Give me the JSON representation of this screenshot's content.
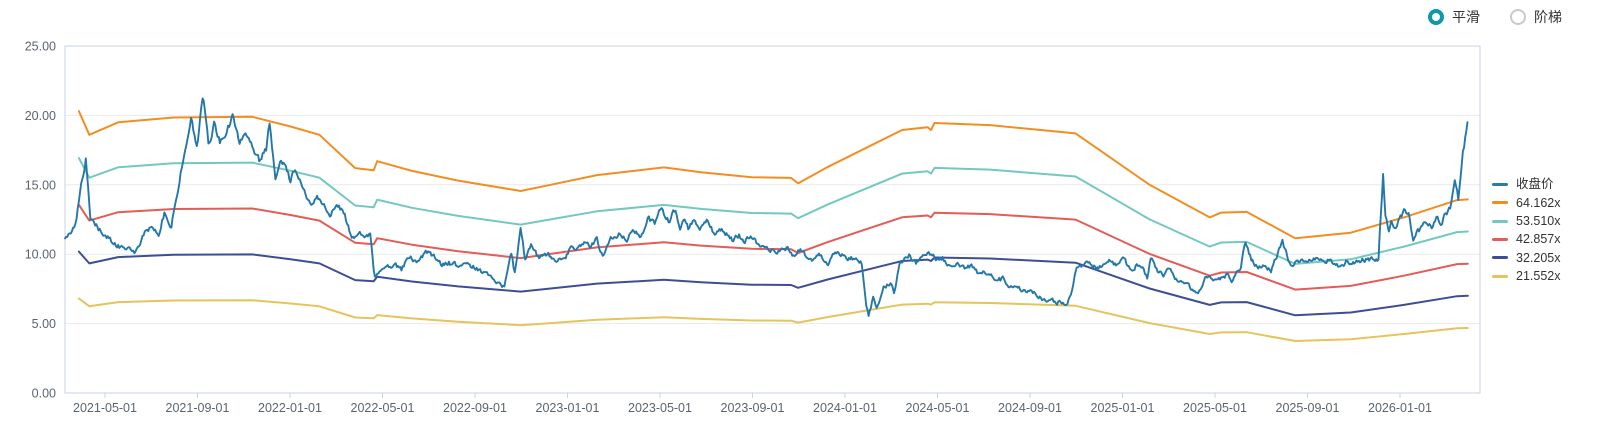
{
  "controls": {
    "options": [
      {
        "label": "平滑",
        "selected": true
      },
      {
        "label": "阶梯",
        "selected": false
      }
    ],
    "accent_color": "#0d9aa8"
  },
  "legend": {
    "items": [
      {
        "label": "收盘价",
        "color": "#2b7ba3"
      },
      {
        "label": "64.162x",
        "color": "#f28e21"
      },
      {
        "label": "53.510x",
        "color": "#73c8c0"
      },
      {
        "label": "42.857x",
        "color": "#e45c57"
      },
      {
        "label": "32.205x",
        "color": "#3d4e95"
      },
      {
        "label": "21.552x",
        "color": "#e5c45c"
      }
    ]
  },
  "chart_data": {
    "type": "line",
    "title": "",
    "xlabel": "",
    "ylabel": "",
    "ylim": [
      0,
      25
    ],
    "y_tick_labels": [
      "0.00",
      "5.00",
      "10.00",
      "15.00",
      "20.00",
      "25.00"
    ],
    "y_tick_values": [
      0,
      5,
      10,
      15,
      20,
      25
    ],
    "x_tick_labels": [
      "2021-05-01",
      "2021-09-01",
      "2022-01-01",
      "2022-05-01",
      "2022-09-01",
      "2023-01-01",
      "2023-05-01",
      "2023-09-01",
      "2024-01-01",
      "2024-05-01",
      "2024-09-01",
      "2025-01-01",
      "2025-05-01",
      "2025-09-01",
      "2026-01-01"
    ],
    "x_first_tick_t": 1.73,
    "x_tick_step_t": 4,
    "t_range": [
      0,
      60.66
    ],
    "grid": true,
    "legend_position": "right",
    "mode": "smooth",
    "price_series": {
      "name": "收盘价",
      "color": "#2478a9",
      "anchors": [
        [
          0,
          11.0
        ],
        [
          0.45,
          12.1
        ],
        [
          0.9,
          17.0
        ],
        [
          1.1,
          12.6
        ],
        [
          1.45,
          11.9
        ],
        [
          1.8,
          11.3
        ],
        [
          2.15,
          10.7
        ],
        [
          2.6,
          10.4
        ],
        [
          3.0,
          10.25
        ],
        [
          3.45,
          11.5
        ],
        [
          3.8,
          12.1
        ],
        [
          4.05,
          11.6
        ],
        [
          4.3,
          12.95
        ],
        [
          4.6,
          12.0
        ],
        [
          4.85,
          14.3
        ],
        [
          5.05,
          16.4
        ],
        [
          5.2,
          17.6
        ],
        [
          5.45,
          19.7
        ],
        [
          5.7,
          17.6
        ],
        [
          5.97,
          21.5
        ],
        [
          6.2,
          18.0
        ],
        [
          6.45,
          19.3
        ],
        [
          6.7,
          18.0
        ],
        [
          7.0,
          19.0
        ],
        [
          7.26,
          20.0
        ],
        [
          7.55,
          17.9
        ],
        [
          7.8,
          18.8
        ],
        [
          8.4,
          16.7
        ],
        [
          8.7,
          17.6
        ],
        [
          8.85,
          19.4
        ],
        [
          9.1,
          15.5
        ],
        [
          9.35,
          16.8
        ],
        [
          9.6,
          15.9
        ],
        [
          9.75,
          15.3
        ],
        [
          9.95,
          16.3
        ],
        [
          10.3,
          14.7
        ],
        [
          10.6,
          13.6
        ],
        [
          10.9,
          14.2
        ],
        [
          11.5,
          12.9
        ],
        [
          11.85,
          13.5
        ],
        [
          12.1,
          12.9
        ],
        [
          12.4,
          11.0
        ],
        [
          12.7,
          11.6
        ],
        [
          12.95,
          11.2
        ],
        [
          13.2,
          11.4
        ],
        [
          13.37,
          8.4
        ],
        [
          13.55,
          8.6
        ],
        [
          13.8,
          8.98
        ],
        [
          14.3,
          9.2
        ],
        [
          14.55,
          8.86
        ],
        [
          14.9,
          9.82
        ],
        [
          15.2,
          9.58
        ],
        [
          15.75,
          10.3
        ],
        [
          16.25,
          9.22
        ],
        [
          16.6,
          9.4
        ],
        [
          17.0,
          9.1
        ],
        [
          17.4,
          9.3
        ],
        [
          18.1,
          8.63
        ],
        [
          18.6,
          8.14
        ],
        [
          19.0,
          7.6
        ],
        [
          19.3,
          9.94
        ],
        [
          19.45,
          8.6
        ],
        [
          19.7,
          11.74
        ],
        [
          19.9,
          9.5
        ],
        [
          20.15,
          10.66
        ],
        [
          20.5,
          9.7
        ],
        [
          20.9,
          9.9
        ],
        [
          21.3,
          9.6
        ],
        [
          21.6,
          9.7
        ],
        [
          21.9,
          10.54
        ],
        [
          22.15,
          10.3
        ],
        [
          22.4,
          10.9
        ],
        [
          22.7,
          10.54
        ],
        [
          23.0,
          11.02
        ],
        [
          23.25,
          9.9
        ],
        [
          23.7,
          11.26
        ],
        [
          24.0,
          11.5
        ],
        [
          24.3,
          11.0
        ],
        [
          24.6,
          11.74
        ],
        [
          24.9,
          11.26
        ],
        [
          25.2,
          12.58
        ],
        [
          25.5,
          12.2
        ],
        [
          25.8,
          13.3
        ],
        [
          26.1,
          12.4
        ],
        [
          26.4,
          13.2
        ],
        [
          26.6,
          12.1
        ],
        [
          26.75,
          12.5
        ],
        [
          26.95,
          11.9
        ],
        [
          27.2,
          12.4
        ],
        [
          27.5,
          12.0
        ],
        [
          27.75,
          12.5
        ],
        [
          28.05,
          11.5
        ],
        [
          28.35,
          11.7
        ],
        [
          28.6,
          11.5
        ],
        [
          28.9,
          11.0
        ],
        [
          29.15,
          11.4
        ],
        [
          29.4,
          11.0
        ],
        [
          29.6,
          11.2
        ],
        [
          30.07,
          10.66
        ],
        [
          30.6,
          10.4
        ],
        [
          31.0,
          10.2
        ],
        [
          31.2,
          10.4
        ],
        [
          31.5,
          9.94
        ],
        [
          31.8,
          10.3
        ],
        [
          32.3,
          9.58
        ],
        [
          32.6,
          9.9
        ],
        [
          33.0,
          9.34
        ],
        [
          33.4,
          10.2
        ],
        [
          33.8,
          9.6
        ],
        [
          34.2,
          9.7
        ],
        [
          34.45,
          9.4
        ],
        [
          34.65,
          6.2
        ],
        [
          34.76,
          5.5
        ],
        [
          34.95,
          6.94
        ],
        [
          35.1,
          6.1
        ],
        [
          35.4,
          7.78
        ],
        [
          35.7,
          7.9
        ],
        [
          35.85,
          7.3
        ],
        [
          36.1,
          9.34
        ],
        [
          36.3,
          9.82
        ],
        [
          36.5,
          9.9
        ],
        [
          36.8,
          9.3
        ],
        [
          37.1,
          9.7
        ],
        [
          37.45,
          10.06
        ],
        [
          37.7,
          9.6
        ],
        [
          37.95,
          9.7
        ],
        [
          38.2,
          9.3
        ],
        [
          38.5,
          9.4
        ],
        [
          38.9,
          8.98
        ],
        [
          39.2,
          9.2
        ],
        [
          39.5,
          8.62
        ],
        [
          39.75,
          8.8
        ],
        [
          40.05,
          8.38
        ],
        [
          40.3,
          8.1
        ],
        [
          40.55,
          8.2
        ],
        [
          40.9,
          7.66
        ],
        [
          41.15,
          7.8
        ],
        [
          41.5,
          7.3
        ],
        [
          41.75,
          7.4
        ],
        [
          42.05,
          7.06
        ],
        [
          42.3,
          6.8
        ],
        [
          42.65,
          6.7
        ],
        [
          42.9,
          6.5
        ],
        [
          43.05,
          6.6
        ],
        [
          43.3,
          6.25
        ],
        [
          43.55,
          7.5
        ],
        [
          43.75,
          9.0
        ],
        [
          44.0,
          9.0
        ],
        [
          44.3,
          9.4
        ],
        [
          44.6,
          9.0
        ],
        [
          44.9,
          9.2
        ],
        [
          45.2,
          9.6
        ],
        [
          45.5,
          9.2
        ],
        [
          45.8,
          9.6
        ],
        [
          46.1,
          8.7
        ],
        [
          46.35,
          9.3
        ],
        [
          46.6,
          8.9
        ],
        [
          46.8,
          8.2
        ],
        [
          46.97,
          9.85
        ],
        [
          47.2,
          8.9
        ],
        [
          47.5,
          8.4
        ],
        [
          47.75,
          9.0
        ],
        [
          48.1,
          8.0
        ],
        [
          48.5,
          7.78
        ],
        [
          49.0,
          6.94
        ],
        [
          49.3,
          8.14
        ],
        [
          49.6,
          8.4
        ],
        [
          49.85,
          8.0
        ],
        [
          50.2,
          8.5
        ],
        [
          50.5,
          8.1
        ],
        [
          50.85,
          9.1
        ],
        [
          51.05,
          10.9
        ],
        [
          51.3,
          9.58
        ],
        [
          51.6,
          9.0
        ],
        [
          51.9,
          9.2
        ],
        [
          52.15,
          8.9
        ],
        [
          52.45,
          10.1
        ],
        [
          52.65,
          10.8
        ],
        [
          52.9,
          9.6
        ],
        [
          53.15,
          9.2
        ],
        [
          53.4,
          9.6
        ],
        [
          53.65,
          9.4
        ],
        [
          53.9,
          9.7
        ],
        [
          54.15,
          9.6
        ],
        [
          54.4,
          9.4
        ],
        [
          54.65,
          9.6
        ],
        [
          54.9,
          9.4
        ],
        [
          55.15,
          9.1
        ],
        [
          55.4,
          9.4
        ],
        [
          55.65,
          9.2
        ],
        [
          55.9,
          9.5
        ],
        [
          56.15,
          9.6
        ],
        [
          56.5,
          9.7
        ],
        [
          56.8,
          9.6
        ],
        [
          57.0,
          15.95
        ],
        [
          57.1,
          12.8
        ],
        [
          57.25,
          11.9
        ],
        [
          57.35,
          12.3
        ],
        [
          57.5,
          11.7
        ],
        [
          57.7,
          12.35
        ],
        [
          57.9,
          12.97
        ],
        [
          58.1,
          13.0
        ],
        [
          58.3,
          11.0
        ],
        [
          58.5,
          11.6
        ],
        [
          58.7,
          11.9
        ],
        [
          58.9,
          12.3
        ],
        [
          59.1,
          12.0
        ],
        [
          59.3,
          12.8
        ],
        [
          59.5,
          12.1
        ],
        [
          59.7,
          12.9
        ],
        [
          59.9,
          13.2
        ],
        [
          60.1,
          15.3
        ],
        [
          60.25,
          14.0
        ],
        [
          60.45,
          17.5
        ],
        [
          60.66,
          19.4
        ]
      ]
    },
    "bands": {
      "base_multiple": 64.162,
      "t_start": 0.6,
      "base_anchors": [
        [
          0.6,
          20.3
        ],
        [
          1.05,
          18.6
        ],
        [
          2.3,
          19.5
        ],
        [
          4.7,
          19.85
        ],
        [
          8.1,
          19.9
        ],
        [
          9.75,
          19.2
        ],
        [
          11.0,
          18.6
        ],
        [
          12.55,
          16.2
        ],
        [
          13.35,
          16.05
        ],
        [
          13.5,
          16.7
        ],
        [
          15.0,
          16.0
        ],
        [
          17.0,
          15.3
        ],
        [
          19.7,
          14.55
        ],
        [
          21.0,
          15.0
        ],
        [
          23.0,
          15.7
        ],
        [
          25.9,
          16.25
        ],
        [
          27.5,
          15.9
        ],
        [
          29.7,
          15.55
        ],
        [
          31.4,
          15.5
        ],
        [
          31.7,
          15.1
        ],
        [
          33.0,
          16.3
        ],
        [
          36.2,
          18.95
        ],
        [
          37.3,
          19.15
        ],
        [
          37.45,
          18.95
        ],
        [
          37.6,
          19.45
        ],
        [
          40.0,
          19.3
        ],
        [
          43.7,
          18.7
        ],
        [
          46.9,
          15.0
        ],
        [
          49.5,
          12.65
        ],
        [
          50.0,
          13.0
        ],
        [
          51.1,
          13.05
        ],
        [
          53.2,
          11.15
        ],
        [
          55.6,
          11.55
        ],
        [
          57.9,
          12.65
        ],
        [
          60.2,
          13.9
        ],
        [
          60.66,
          13.95
        ]
      ],
      "multiples": [
        {
          "label": "64.162x",
          "value": 64.162,
          "color": "#f28e21"
        },
        {
          "label": "53.510x",
          "value": 53.51,
          "color": "#73c8c0"
        },
        {
          "label": "42.857x",
          "value": 42.857,
          "color": "#e45c57"
        },
        {
          "label": "32.205x",
          "value": 32.205,
          "color": "#3d4e95"
        },
        {
          "label": "21.552x",
          "value": 21.552,
          "color": "#e5c45c"
        }
      ]
    },
    "style": {
      "grid_color": "#e9eaef",
      "border_color": "#c9d2e0",
      "tick_label_color": "#5a6470",
      "background": "#ffffff"
    }
  }
}
